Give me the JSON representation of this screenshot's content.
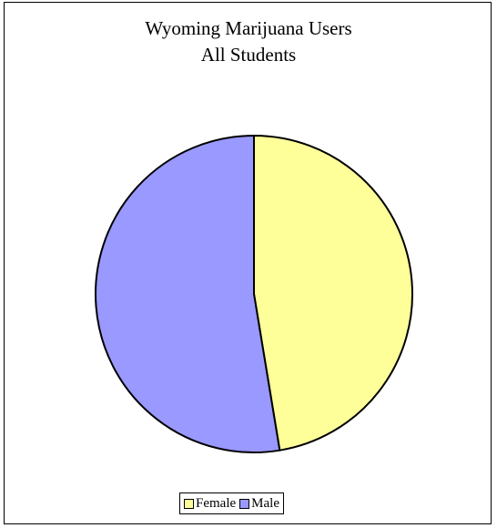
{
  "chart_data": {
    "type": "pie",
    "title": [
      "Wyoming Marijuana Users",
      "All Students"
    ],
    "categories": [
      "Female",
      "Male"
    ],
    "values": [
      47.4,
      52.6
    ],
    "colors": [
      "#FFFF99",
      "#9999FF"
    ],
    "legend_position": "bottom"
  }
}
